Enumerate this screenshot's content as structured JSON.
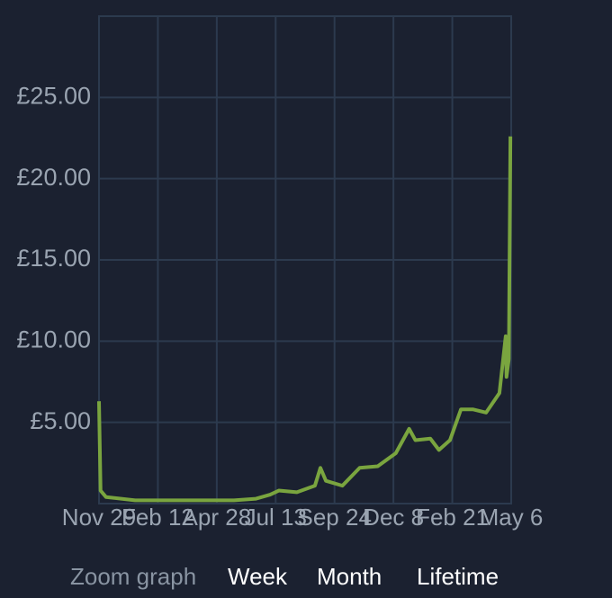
{
  "chart_data": {
    "type": "line",
    "x": [
      0,
      2,
      9,
      46,
      103,
      172,
      200,
      218,
      229,
      252,
      275,
      282,
      289,
      310,
      332,
      355,
      378,
      395,
      403,
      422,
      433,
      447,
      461,
      476,
      493,
      510,
      518,
      519,
      522,
      524
    ],
    "values": [
      6.3,
      0.8,
      0.4,
      0.2,
      0.2,
      0.2,
      0.3,
      0.55,
      0.8,
      0.7,
      1.1,
      2.2,
      1.4,
      1.1,
      2.2,
      2.3,
      3.1,
      4.6,
      3.9,
      4.0,
      3.3,
      3.9,
      5.8,
      5.8,
      5.6,
      6.8,
      10.3,
      7.8,
      8.9,
      22.6
    ],
    "color": "#7aa53f",
    "xlim": [
      0,
      525
    ],
    "xticks": [
      {
        "value": 0,
        "label": "Nov 29"
      },
      {
        "value": 75,
        "label": "Feb 12"
      },
      {
        "value": 150,
        "label": "Apr 28"
      },
      {
        "value": 225,
        "label": "Jul 13"
      },
      {
        "value": 300,
        "label": "Sep 24"
      },
      {
        "value": 375,
        "label": "Dec 8"
      },
      {
        "value": 450,
        "label": "Feb 21"
      },
      {
        "value": 525,
        "label": "May 6"
      }
    ],
    "ylim": [
      0,
      30
    ],
    "yticks": [
      {
        "value": 5,
        "label": "£5.00"
      },
      {
        "value": 10,
        "label": "£10.00"
      },
      {
        "value": 15,
        "label": "£15.00"
      },
      {
        "value": 20,
        "label": "£20.00"
      },
      {
        "value": 25,
        "label": "£25.00"
      }
    ],
    "grid": true
  },
  "zoom": {
    "label": "Zoom graph",
    "options": [
      "Week",
      "Month",
      "Lifetime"
    ]
  }
}
